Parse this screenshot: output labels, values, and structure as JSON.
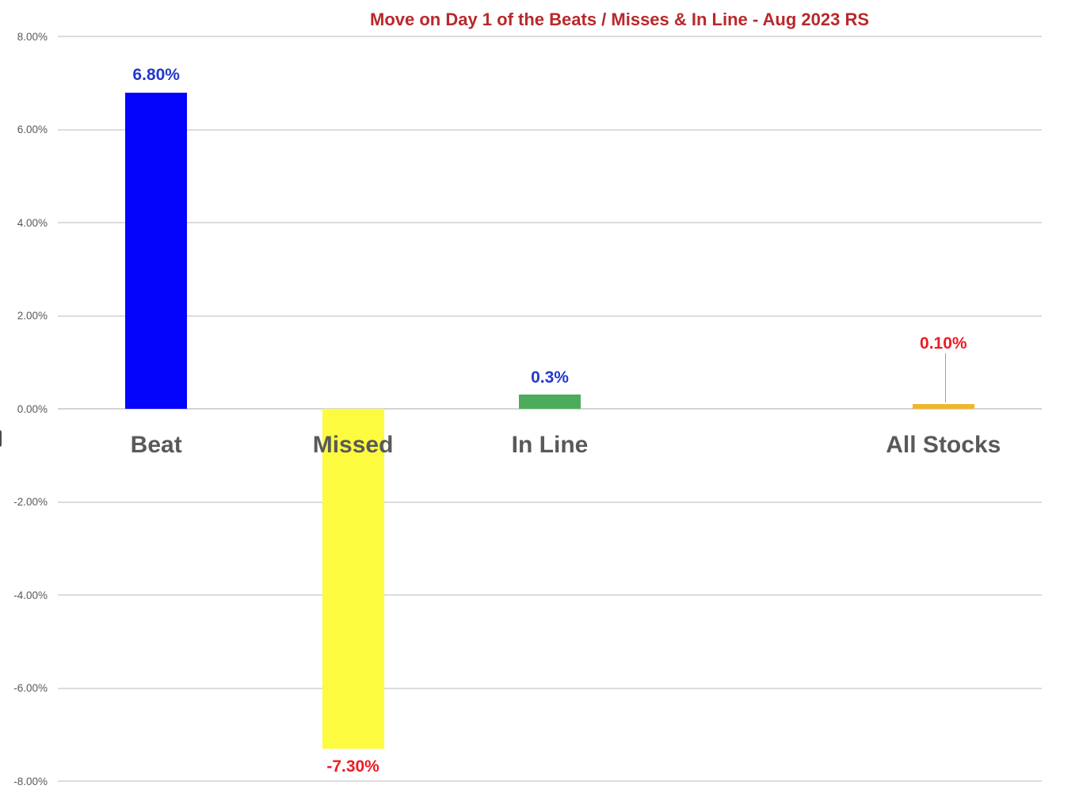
{
  "chart_data": {
    "type": "bar",
    "title": "Move on Day 1 of the Beats / Misses & In Line - Aug 2023 RS",
    "title_color": "#B9282B",
    "categories": [
      "Beat",
      "Missed",
      "In Line",
      "",
      "All Stocks"
    ],
    "values": [
      6.8,
      -7.3,
      0.3,
      null,
      0.1
    ],
    "bar_colors": [
      "#0404FC",
      "#FDFB40",
      "#4CAC5C",
      null,
      "#F0B62E"
    ],
    "data_labels": [
      {
        "text": "6.80%",
        "color": "#2437CE",
        "position": "above"
      },
      {
        "text": "-7.30%",
        "color": "#EC1C24",
        "position": "below"
      },
      {
        "text": "0.3%",
        "color": "#2437CE",
        "position": "above"
      },
      null,
      {
        "text": "0.10%",
        "color": "#EC1C24",
        "position": "above-offset",
        "leader_line": true
      }
    ],
    "xlabel": "",
    "ylabel": "",
    "ylim": [
      -8,
      8
    ],
    "ytick_step": 2,
    "ytick_labels": [
      "8.00%",
      "6.00%",
      "4.00%",
      "2.00%",
      "0.00%",
      "-2.00%",
      "-4.00%",
      "-6.00%",
      "-8.00%"
    ],
    "grid": true,
    "legend": "none",
    "gridline_color": "#DCDCDC",
    "category_label_color": "#595959",
    "axis_tick_color": "#595959"
  }
}
